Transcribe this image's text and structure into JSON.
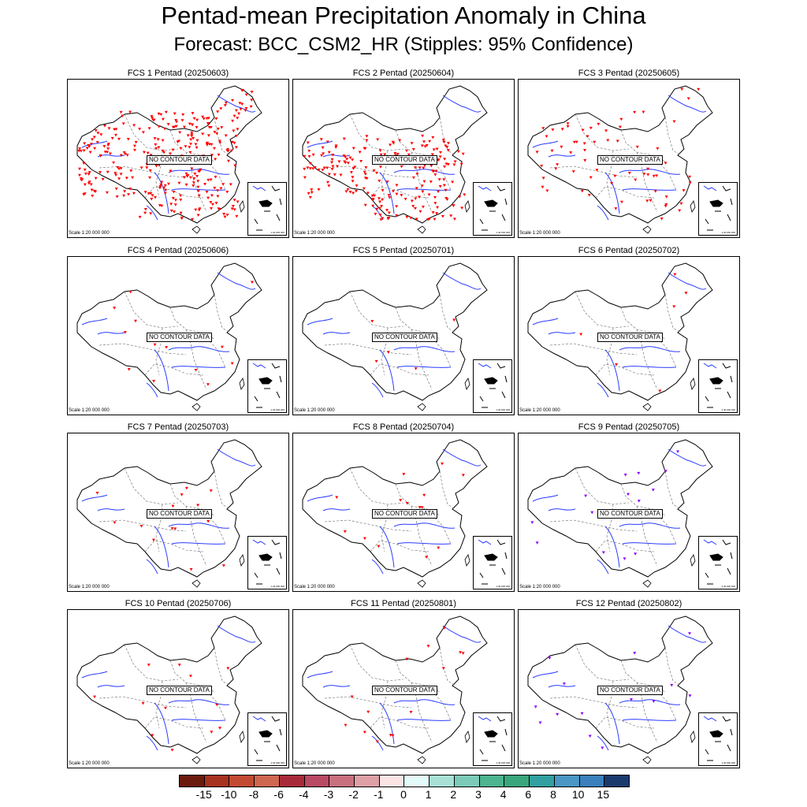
{
  "title": "Pentad-mean Precipitation Anomaly in China",
  "subtitle": "Forecast: BCC_CSM2_HR (Stipples: 95% Confidence)",
  "no_data_label": "NO CONTOUR DATA",
  "scale_label": "Scale 1:20 000 000",
  "inset_scale_label": "1:40 000 000",
  "panels": [
    {
      "title": "FCS 1 Pentad (20250603)",
      "stipple_density": "dense",
      "stipple_color": "#ff0000"
    },
    {
      "title": "FCS 2 Pentad (20250604)",
      "stipple_density": "dense-south",
      "stipple_color": "#ff0000"
    },
    {
      "title": "FCS 3 Pentad (20250605)",
      "stipple_density": "moderate",
      "stipple_color": "#ff0000"
    },
    {
      "title": "FCS 4 Pentad (20250606)",
      "stipple_density": "sparse",
      "stipple_color": "#ff0000"
    },
    {
      "title": "FCS 5 Pentad (20250701)",
      "stipple_density": "very-sparse",
      "stipple_color": "#ff0000"
    },
    {
      "title": "FCS 6 Pentad (20250702)",
      "stipple_density": "very-sparse",
      "stipple_color": "#ff0000"
    },
    {
      "title": "FCS 7 Pentad (20250703)",
      "stipple_density": "sparse",
      "stipple_color": "#ff0000"
    },
    {
      "title": "FCS 8 Pentad (20250704)",
      "stipple_density": "sparse",
      "stipple_color": "#ff0000"
    },
    {
      "title": "FCS 9 Pentad (20250705)",
      "stipple_density": "sparse",
      "stipple_color": "#8800ff"
    },
    {
      "title": "FCS 10 Pentad (20250706)",
      "stipple_density": "sparse",
      "stipple_color": "#ff0000"
    },
    {
      "title": "FCS 11 Pentad (20250801)",
      "stipple_density": "sparse",
      "stipple_color": "#ff0000"
    },
    {
      "title": "FCS 12 Pentad (20250802)",
      "stipple_density": "sparse",
      "stipple_color": "#8800ff"
    }
  ],
  "colorbar": {
    "labels": [
      "-15",
      "-10",
      "-8",
      "-6",
      "-4",
      "-3",
      "-2",
      "-1",
      "0",
      "1",
      "2",
      "3",
      "4",
      "6",
      "8",
      "10",
      "15"
    ],
    "colors": [
      "#6b1a0e",
      "#a83220",
      "#c24a32",
      "#cf6650",
      "#a82a3a",
      "#b84a64",
      "#c8707e",
      "#dda0a6",
      "#fde4e4",
      "#e4fbfb",
      "#a8e0d6",
      "#7ccbb8",
      "#4cb48e",
      "#3aa67c",
      "#32a0a0",
      "#4a96c4",
      "#3a80bc",
      "#1a3a6e"
    ]
  }
}
